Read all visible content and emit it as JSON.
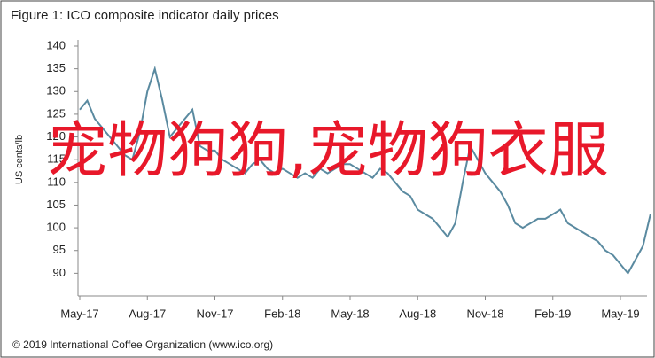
{
  "chart_data": {
    "type": "line",
    "title": "Figure 1: ICO composite indicator daily prices",
    "ylabel": "US cents/lb",
    "footer": "© 2019 International Coffee Organization (www.ico.org)",
    "annotation": "宠物狗狗,宠物狗衣服",
    "categories": [
      "May-17",
      null,
      null,
      null,
      null,
      null,
      null,
      null,
      null,
      "Aug-17",
      null,
      null,
      null,
      null,
      null,
      null,
      null,
      null,
      "Nov-17",
      null,
      null,
      null,
      null,
      null,
      null,
      null,
      null,
      "Feb-18",
      null,
      null,
      null,
      null,
      null,
      null,
      null,
      null,
      "May-18",
      null,
      null,
      null,
      null,
      null,
      null,
      null,
      null,
      "Aug-18",
      null,
      null,
      null,
      null,
      null,
      null,
      null,
      null,
      "Nov-18",
      null,
      null,
      null,
      null,
      null,
      null,
      null,
      null,
      "Feb-19",
      null,
      null,
      null,
      null,
      null,
      null,
      null,
      null,
      "May-19",
      null,
      null,
      null,
      null
    ],
    "series": [
      {
        "name": "ICO composite indicator",
        "color": "#5a8aa0",
        "values": [
          126,
          128,
          124,
          122,
          120,
          118,
          116,
          115,
          121,
          130,
          135,
          128,
          120,
          122,
          124,
          126,
          118,
          117,
          117,
          115,
          114,
          113,
          112,
          114,
          115,
          113,
          112,
          113,
          112,
          111,
          112,
          111,
          113,
          112,
          113,
          114,
          114,
          113,
          112,
          111,
          113,
          112,
          110,
          108,
          107,
          104,
          103,
          102,
          100,
          98,
          101,
          110,
          118,
          115,
          112,
          110,
          108,
          105,
          101,
          100,
          101,
          102,
          102,
          103,
          104,
          101,
          100,
          99,
          98,
          97,
          95,
          94,
          92,
          90,
          93,
          96,
          103
        ]
      }
    ],
    "ylim": [
      85,
      140
    ],
    "yticks": [
      90,
      95,
      100,
      105,
      110,
      115,
      120,
      125,
      130,
      135,
      140
    ]
  }
}
